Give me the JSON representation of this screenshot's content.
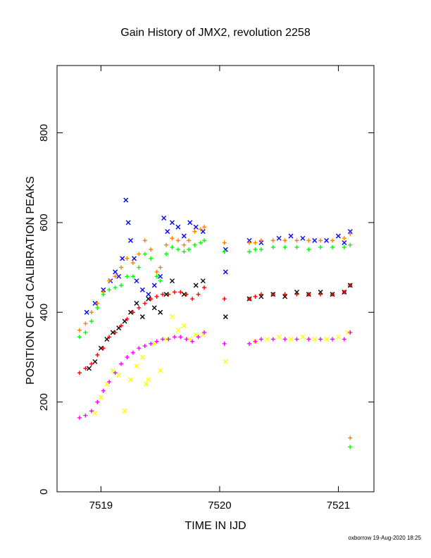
{
  "chart_data": {
    "type": "scatter",
    "title": "Gain History of JMX2, revolution 2258",
    "xlabel": "TIME IN IJD",
    "ylabel": "POSITION OF Cd CALIBRATION PEAKS",
    "xlim": [
      7518.63,
      7521.3
    ],
    "ylim": [
      0,
      950
    ],
    "x_ticks": [
      7519,
      7520,
      7521
    ],
    "x_tick_labels": [
      "7519",
      "7520",
      "7521"
    ],
    "y_ticks": [
      0,
      200,
      400,
      600,
      800
    ],
    "y_tick_labels": [
      "0",
      "200",
      "400",
      "600",
      "800"
    ],
    "grid": false,
    "legend": "none",
    "series": [
      {
        "marker": "x",
        "color": "#0000ff",
        "x": [
          7518.88,
          7518.95,
          7519.02,
          7519.08,
          7519.12,
          7519.15,
          7519.18,
          7519.21,
          7519.23,
          7519.25,
          7519.28,
          7519.3,
          7519.35,
          7519.4,
          7519.45,
          7519.5,
          7519.53,
          7519.56,
          7519.6,
          7519.65,
          7519.7,
          7519.75,
          7519.8,
          7519.86,
          7520.05,
          7520.05,
          7520.25,
          7520.35,
          7520.5,
          7520.6,
          7520.7,
          7520.8,
          7520.9,
          7521.0,
          7521.05,
          7521.1
        ],
        "y": [
          400,
          420,
          450,
          470,
          490,
          480,
          520,
          650,
          600,
          560,
          520,
          470,
          450,
          440,
          460,
          480,
          610,
          580,
          600,
          590,
          570,
          600,
          590,
          580,
          540,
          490,
          560,
          555,
          565,
          570,
          565,
          560,
          560,
          570,
          555,
          580
        ]
      },
      {
        "marker": "x",
        "color": "#000000",
        "x": [
          7518.9,
          7518.95,
          7519.0,
          7519.05,
          7519.1,
          7519.15,
          7519.2,
          7519.25,
          7519.3,
          7519.35,
          7519.4,
          7519.45,
          7519.5,
          7519.55,
          7519.6,
          7519.7,
          7519.8,
          7519.86,
          7520.05,
          7520.25,
          7520.35,
          7520.45,
          7520.55,
          7520.65,
          7520.75,
          7520.85,
          7520.95,
          7521.05,
          7521.1
        ],
        "y": [
          275,
          290,
          320,
          340,
          355,
          365,
          380,
          400,
          420,
          390,
          430,
          410,
          400,
          440,
          470,
          440,
          460,
          470,
          390,
          430,
          435,
          440,
          435,
          445,
          440,
          445,
          440,
          445,
          460
        ]
      },
      {
        "marker": "x",
        "color": "#ffff00",
        "x": [
          7518.95,
          7519.0,
          7519.05,
          7519.1,
          7519.15,
          7519.2,
          7519.25,
          7519.3,
          7519.35,
          7519.38,
          7519.4,
          7519.45,
          7519.5,
          7519.55,
          7519.6,
          7519.65,
          7519.7,
          7519.75,
          7519.8,
          7519.86,
          7520.05,
          7520.3,
          7520.4,
          7520.5,
          7520.6,
          7520.7,
          7520.8,
          7520.9,
          7521.0,
          7521.08
        ],
        "y": [
          175,
          210,
          240,
          270,
          260,
          180,
          250,
          280,
          300,
          240,
          250,
          330,
          270,
          340,
          390,
          360,
          370,
          340,
          350,
          350,
          290,
          335,
          340,
          345,
          340,
          345,
          340,
          340,
          345,
          355
        ]
      },
      {
        "marker": "+",
        "color": "#ff8000",
        "x": [
          7518.82,
          7518.87,
          7518.92,
          7518.97,
          7519.02,
          7519.07,
          7519.12,
          7519.17,
          7519.22,
          7519.27,
          7519.32,
          7519.37,
          7519.42,
          7519.47,
          7519.5,
          7519.55,
          7519.6,
          7519.65,
          7519.7,
          7519.74,
          7519.79,
          7519.84,
          7519.87,
          7520.04,
          7520.25,
          7520.3,
          7520.35,
          7520.45,
          7520.55,
          7520.65,
          7520.75,
          7520.85,
          7520.95,
          7521.05,
          7521.1,
          7521.1
        ],
        "y": [
          360,
          375,
          400,
          420,
          445,
          470,
          480,
          500,
          520,
          510,
          530,
          560,
          540,
          490,
          500,
          550,
          565,
          560,
          550,
          560,
          580,
          585,
          590,
          555,
          555,
          555,
          560,
          560,
          560,
          560,
          560,
          560,
          560,
          565,
          575,
          120
        ]
      },
      {
        "marker": "+",
        "color": "#00ff00",
        "x": [
          7518.82,
          7518.87,
          7518.92,
          7518.97,
          7519.02,
          7519.07,
          7519.12,
          7519.17,
          7519.22,
          7519.27,
          7519.32,
          7519.37,
          7519.42,
          7519.47,
          7519.5,
          7519.55,
          7519.6,
          7519.65,
          7519.7,
          7519.74,
          7519.79,
          7519.84,
          7519.87,
          7520.04,
          7520.25,
          7520.3,
          7520.35,
          7520.45,
          7520.55,
          7520.65,
          7520.75,
          7520.85,
          7520.95,
          7521.05,
          7521.1,
          7521.1
        ],
        "y": [
          345,
          355,
          380,
          410,
          440,
          450,
          455,
          460,
          480,
          480,
          500,
          530,
          520,
          480,
          470,
          530,
          545,
          540,
          535,
          540,
          550,
          555,
          560,
          535,
          535,
          540,
          540,
          545,
          545,
          545,
          540,
          545,
          545,
          545,
          550,
          100
        ]
      },
      {
        "marker": "+",
        "color": "#ff0000",
        "x": [
          7518.82,
          7518.87,
          7518.92,
          7518.97,
          7519.02,
          7519.07,
          7519.12,
          7519.17,
          7519.22,
          7519.27,
          7519.32,
          7519.37,
          7519.42,
          7519.47,
          7519.52,
          7519.57,
          7519.62,
          7519.67,
          7519.72,
          7519.77,
          7519.82,
          7519.87,
          7520.04,
          7520.25,
          7520.3,
          7520.35,
          7520.45,
          7520.55,
          7520.65,
          7520.75,
          7520.85,
          7520.95,
          7521.05,
          7521.1
        ],
        "y": [
          265,
          275,
          285,
          305,
          320,
          345,
          355,
          370,
          385,
          400,
          410,
          420,
          430,
          435,
          440,
          440,
          445,
          445,
          440,
          430,
          440,
          455,
          430,
          430,
          435,
          440,
          440,
          440,
          440,
          440,
          440,
          440,
          445,
          460
        ]
      },
      {
        "marker": "+",
        "color": "#ff00ff",
        "x": [
          7518.82,
          7518.87,
          7518.92,
          7518.97,
          7519.02,
          7519.07,
          7519.12,
          7519.17,
          7519.22,
          7519.27,
          7519.32,
          7519.37,
          7519.42,
          7519.47,
          7519.52,
          7519.57,
          7519.62,
          7519.67,
          7519.72,
          7519.77,
          7519.82,
          7519.87,
          7520.04,
          7520.25,
          7520.3,
          7520.35,
          7520.45,
          7520.55,
          7520.65,
          7520.75,
          7520.85,
          7520.95,
          7521.05,
          7521.1
        ],
        "y": [
          165,
          170,
          180,
          200,
          225,
          245,
          265,
          285,
          300,
          310,
          320,
          325,
          330,
          335,
          340,
          340,
          345,
          345,
          340,
          335,
          345,
          355,
          330,
          330,
          335,
          340,
          340,
          340,
          340,
          340,
          340,
          340,
          340,
          355
        ]
      }
    ]
  },
  "footer": "oxborrow 19-Aug-2020 18:25"
}
